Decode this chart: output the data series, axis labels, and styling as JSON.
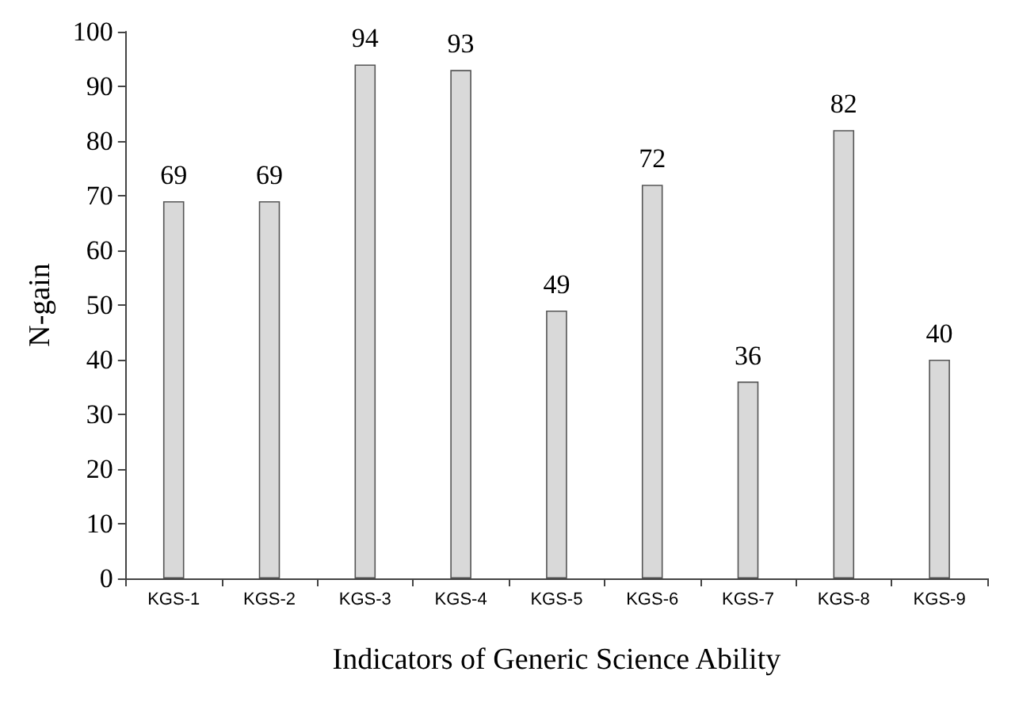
{
  "chart_data": {
    "type": "bar",
    "xlabel": "Indicators of Generic Science Ability",
    "ylabel": "N-gain",
    "categories": [
      "KGS-1",
      "KGS-2",
      "KGS-3",
      "KGS-4",
      "KGS-5",
      "KGS-6",
      "KGS-7",
      "KGS-8",
      "KGS-9"
    ],
    "values": [
      69,
      69,
      94,
      93,
      49,
      72,
      36,
      82,
      40
    ],
    "color": "#d9d9d9",
    "ylim": [
      0,
      100
    ],
    "yticks": [
      0,
      10,
      20,
      30,
      40,
      50,
      60,
      70,
      80,
      90,
      100
    ],
    "grid": false,
    "data_labels": true
  }
}
